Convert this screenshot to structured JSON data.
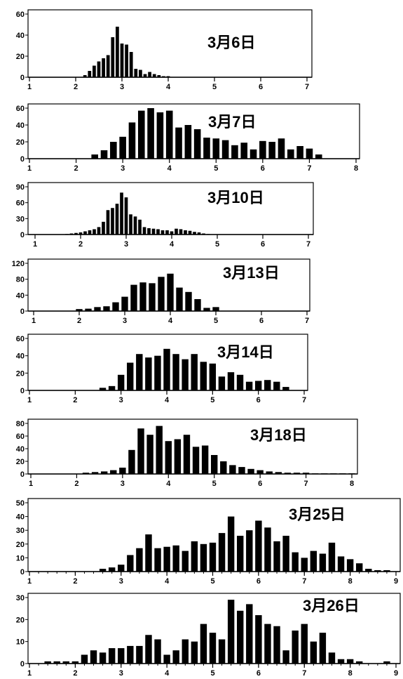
{
  "chart_data": [
    {
      "type": "bar",
      "title": "3月6日",
      "xlim": [
        1,
        7
      ],
      "ylim": [
        0,
        60
      ],
      "xticks": [
        1,
        2,
        3,
        4,
        5,
        6,
        7
      ],
      "yticks": [
        0,
        20,
        40,
        60
      ],
      "bin_width": 0.1,
      "x": [
        1.9,
        2.0,
        2.1,
        2.2,
        2.3,
        2.4,
        2.5,
        2.6,
        2.7,
        2.8,
        2.9,
        3.0,
        3.1,
        3.2,
        3.3,
        3.4,
        3.5,
        3.6,
        3.7,
        3.8,
        3.9,
        4.0,
        4.1,
        4.2,
        4.3,
        4.4,
        4.5,
        4.6,
        4.7,
        4.8,
        4.9,
        5.0
      ],
      "values": [
        0,
        0,
        0,
        2,
        6,
        11,
        15,
        18,
        21,
        38,
        48,
        32,
        31,
        24,
        8,
        7,
        3,
        5,
        3,
        2,
        1,
        1,
        0,
        0,
        0,
        0,
        0,
        0,
        0,
        0,
        0,
        0
      ]
    },
    {
      "type": "bar",
      "title": "3月7日",
      "xlim": [
        1,
        8
      ],
      "ylim": [
        0,
        60
      ],
      "xticks": [
        1,
        2,
        3,
        4,
        5,
        6,
        7,
        8
      ],
      "yticks": [
        0,
        20,
        40,
        60
      ],
      "bin_width": 0.2,
      "x": [
        2.4,
        2.6,
        2.8,
        3.0,
        3.2,
        3.4,
        3.6,
        3.8,
        4.0,
        4.2,
        4.4,
        4.6,
        4.8,
        5.0,
        5.2,
        5.4,
        5.6,
        5.8,
        6.0,
        6.2,
        6.4,
        6.6,
        6.8,
        7.0,
        7.2
      ],
      "values": [
        5,
        10,
        20,
        26,
        43,
        57,
        60,
        55,
        57,
        37,
        40,
        35,
        25,
        24,
        22,
        16,
        19,
        11,
        21,
        20,
        24,
        11,
        15,
        12,
        5
      ]
    },
    {
      "type": "bar",
      "title": "3月10日",
      "xlim": [
        1,
        7
      ],
      "ylim": [
        0,
        90
      ],
      "xticks": [
        1,
        2,
        3,
        4,
        5,
        6,
        7
      ],
      "yticks": [
        0,
        30,
        60,
        90
      ],
      "bin_width": 0.1,
      "x": [
        1.7,
        1.8,
        1.9,
        2.0,
        2.1,
        2.2,
        2.3,
        2.4,
        2.5,
        2.6,
        2.7,
        2.8,
        2.9,
        3.0,
        3.1,
        3.2,
        3.3,
        3.4,
        3.5,
        3.6,
        3.7,
        3.8,
        3.9,
        4.0,
        4.1,
        4.2,
        4.3,
        4.4,
        4.5,
        4.6,
        4.7,
        4.8,
        4.9,
        5.0,
        5.1
      ],
      "values": [
        1,
        2,
        3,
        4,
        6,
        8,
        10,
        14,
        24,
        46,
        50,
        58,
        79,
        70,
        38,
        34,
        28,
        14,
        12,
        11,
        10,
        8,
        8,
        6,
        11,
        10,
        8,
        7,
        5,
        4,
        2,
        1,
        0,
        0,
        0
      ]
    },
    {
      "type": "bar",
      "title": "3月13日",
      "xlim": [
        1,
        7
      ],
      "ylim": [
        0,
        120
      ],
      "xticks": [
        1,
        2,
        3,
        4,
        5,
        6,
        7
      ],
      "yticks": [
        0,
        40,
        80,
        120
      ],
      "bin_width": 0.2,
      "x": [
        2.0,
        2.2,
        2.4,
        2.6,
        2.8,
        3.0,
        3.2,
        3.4,
        3.6,
        3.8,
        4.0,
        4.2,
        4.4,
        4.6,
        4.8,
        5.0
      ],
      "values": [
        5,
        6,
        10,
        12,
        22,
        36,
        66,
        72,
        70,
        86,
        94,
        59,
        48,
        30,
        8,
        10
      ]
    },
    {
      "type": "bar",
      "title": "3月14日",
      "xlim": [
        1,
        7
      ],
      "ylim": [
        0,
        60
      ],
      "xticks": [
        1,
        2,
        3,
        4,
        5,
        6,
        7
      ],
      "yticks": [
        0,
        20,
        40,
        60
      ],
      "bin_width": 0.2,
      "x": [
        2.6,
        2.8,
        3.0,
        3.2,
        3.4,
        3.6,
        3.8,
        4.0,
        4.2,
        4.4,
        4.6,
        4.8,
        5.0,
        5.2,
        5.4,
        5.6,
        5.8,
        6.0,
        6.2,
        6.4,
        6.6
      ],
      "values": [
        3,
        5,
        18,
        32,
        42,
        38,
        40,
        48,
        42,
        36,
        42,
        33,
        31,
        16,
        21,
        18,
        10,
        11,
        12,
        10,
        4
      ]
    },
    {
      "type": "bar",
      "title": "3月18日",
      "xlim": [
        1,
        8
      ],
      "ylim": [
        0,
        80
      ],
      "xticks": [
        1,
        2,
        3,
        4,
        5,
        6,
        7,
        8
      ],
      "yticks": [
        0,
        20,
        40,
        60,
        80
      ],
      "bin_width": 0.2,
      "x": [
        2.2,
        2.4,
        2.6,
        2.8,
        3.0,
        3.2,
        3.4,
        3.6,
        3.8,
        4.0,
        4.2,
        4.4,
        4.6,
        4.8,
        5.0,
        5.2,
        5.4,
        5.6,
        5.8,
        6.0,
        6.2,
        6.4,
        6.6,
        6.8,
        7.0,
        7.2,
        7.4,
        7.6,
        7.8,
        8.0
      ],
      "values": [
        2,
        3,
        4,
        6,
        10,
        38,
        72,
        62,
        76,
        52,
        55,
        62,
        43,
        45,
        30,
        20,
        14,
        11,
        8,
        6,
        4,
        3,
        2,
        2,
        2,
        1,
        1,
        1,
        1,
        1
      ]
    },
    {
      "type": "bar",
      "title": "3月25日",
      "xlim": [
        1,
        9
      ],
      "ylim": [
        0,
        50
      ],
      "xticks": [
        1,
        2,
        3,
        4,
        5,
        6,
        7,
        8,
        9
      ],
      "yticks": [
        0,
        10,
        20,
        30,
        40,
        50
      ],
      "bin_width": 0.2,
      "x": [
        2.6,
        2.8,
        3.0,
        3.2,
        3.4,
        3.6,
        3.8,
        4.0,
        4.2,
        4.4,
        4.6,
        4.8,
        5.0,
        5.2,
        5.4,
        5.6,
        5.8,
        6.0,
        6.2,
        6.4,
        6.6,
        6.8,
        7.0,
        7.2,
        7.4,
        7.6,
        7.8,
        8.0,
        8.2,
        8.4,
        8.6,
        8.8
      ],
      "values": [
        2,
        3,
        5,
        12,
        17,
        27,
        17,
        18,
        19,
        15,
        22,
        20,
        21,
        28,
        40,
        26,
        30,
        37,
        32,
        22,
        26,
        14,
        10,
        15,
        13,
        21,
        11,
        9,
        6,
        2,
        1,
        1
      ]
    },
    {
      "type": "bar",
      "title": "3月26日",
      "xlim": [
        1,
        9
      ],
      "ylim": [
        0,
        30
      ],
      "xticks": [
        1,
        2,
        3,
        4,
        5,
        6,
        7,
        8,
        9
      ],
      "yticks": [
        0,
        10,
        20,
        30
      ],
      "bin_width": 0.2,
      "x": [
        1.4,
        1.6,
        1.8,
        2.0,
        2.2,
        2.4,
        2.6,
        2.8,
        3.0,
        3.2,
        3.4,
        3.6,
        3.8,
        4.0,
        4.2,
        4.4,
        4.6,
        4.8,
        5.0,
        5.2,
        5.4,
        5.6,
        5.8,
        6.0,
        6.2,
        6.4,
        6.6,
        6.8,
        7.0,
        7.2,
        7.4,
        7.6,
        7.8,
        8.0,
        8.2,
        8.4,
        8.6,
        8.8
      ],
      "values": [
        1,
        1,
        1,
        1,
        4,
        6,
        5,
        7,
        7,
        8,
        8,
        13,
        11,
        4,
        6,
        11,
        10,
        18,
        14,
        11,
        29,
        24,
        27,
        22,
        18,
        17,
        6,
        15,
        18,
        10,
        14,
        5,
        2,
        2,
        1,
        0,
        0,
        1
      ]
    }
  ]
}
